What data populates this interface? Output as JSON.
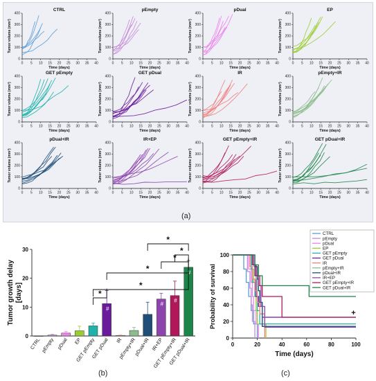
{
  "captions": {
    "a": "(a)",
    "b": "(b)",
    "c": "(c)"
  },
  "chart_data": [
    {
      "type": "line",
      "panel": "(a)",
      "xlabel": "Time (days)",
      "ylabel": "Tumor volume (mm³)",
      "xlim": [
        0,
        40
      ],
      "ylim": [
        0,
        400
      ],
      "xticks": [
        "0",
        "5",
        "10",
        "15",
        "20",
        "25",
        "30",
        "35",
        "40"
      ],
      "yticks": [
        "0",
        "100",
        "200",
        "300",
        "400"
      ],
      "groups": [
        {
          "title": "CTRL",
          "color": "#5b9bd5",
          "n_lines": 6,
          "end_days": [
            7,
            9,
            10,
            11,
            12,
            19
          ]
        },
        {
          "title": "pEmpty",
          "color": "#c58bd9",
          "n_lines": 7,
          "end_days": [
            9,
            10,
            11,
            12,
            13,
            14,
            15
          ]
        },
        {
          "title": "pDual",
          "color": "#ee82ee",
          "n_lines": 7,
          "end_days": [
            9,
            10,
            11,
            12,
            13,
            14,
            16
          ]
        },
        {
          "title": "EP",
          "color": "#9acd32",
          "n_lines": 7,
          "end_days": [
            10,
            12,
            13,
            14,
            15,
            16,
            23
          ]
        },
        {
          "title": "GET pEmpty",
          "color": "#20b2aa",
          "n_lines": 9,
          "end_days": [
            10,
            12,
            13,
            14,
            15,
            16,
            17,
            18,
            25
          ]
        },
        {
          "title": "GET pDual",
          "color": "#6a1b9a",
          "n_lines": 9,
          "end_days": [
            12,
            14,
            16,
            17,
            18,
            19,
            20,
            22,
            40
          ]
        },
        {
          "title": "IR",
          "color": "#f08080",
          "n_lines": 8,
          "end_days": [
            10,
            12,
            14,
            15,
            16,
            17,
            19,
            24
          ]
        },
        {
          "title": "pEmpty+IR",
          "color": "#8fbc8f",
          "n_lines": 8,
          "end_days": [
            12,
            14,
            15,
            16,
            17,
            18,
            19,
            21
          ]
        },
        {
          "title": "pDual+IR",
          "color": "#1f4e79",
          "n_lines": 8,
          "end_days": [
            16,
            17,
            18,
            19,
            20,
            21,
            21,
            22
          ]
        },
        {
          "title": "IR+EP",
          "color": "#8e44ad",
          "n_lines": 10,
          "end_days": [
            15,
            16,
            18,
            19,
            20,
            22,
            25,
            30,
            35,
            40
          ]
        },
        {
          "title": "GET pEmpty+IR",
          "color": "#b0185a",
          "n_lines": 9,
          "end_days": [
            12,
            14,
            16,
            17,
            18,
            20,
            22,
            26,
            40
          ]
        },
        {
          "title": "GET pDual+IR",
          "color": "#1e8449",
          "n_lines": 9,
          "end_days": [
            14,
            15,
            16,
            17,
            18,
            20,
            40,
            40,
            40
          ]
        }
      ]
    },
    {
      "type": "bar",
      "panel": "(b)",
      "ylabel": "Tumor growth delay\n[days]",
      "ylim": [
        0,
        30
      ],
      "yticks": [
        "0",
        "10",
        "20",
        "30"
      ],
      "categories": [
        "CTRL",
        "pEmpty",
        "pDual",
        "EP",
        "GET pEmpty",
        "GET pDual",
        "IR",
        "pEmpty+IR",
        "pDual+IR",
        "IR+EP",
        "GET pEmpty+IR",
        "GET pDual+IR"
      ],
      "values": [
        0,
        0.3,
        1.0,
        1.8,
        3.5,
        11.2,
        0.2,
        1.9,
        7.5,
        12.8,
        14.0,
        23.8
      ],
      "errors": [
        0,
        0.3,
        0.6,
        1.6,
        1.0,
        4.5,
        0.1,
        1.1,
        4.2,
        2.0,
        5.0,
        2.3
      ],
      "colors": [
        "#5b9bd5",
        "#c58bd9",
        "#ee82ee",
        "#9acd32",
        "#20b2aa",
        "#6a1b9a",
        "#f08080",
        "#8fbc8f",
        "#1f4e79",
        "#8e44ad",
        "#b0185a",
        "#1e8449"
      ],
      "hash_marks": [
        "GET pDual",
        "IR+EP",
        "GET pEmpty+IR",
        "GET pDual+IR"
      ],
      "hash_symbol": "#",
      "star_symbol": "*",
      "brackets": [
        {
          "from": "GET pEmpty",
          "to": "GET pDual",
          "level": 1
        },
        {
          "from": "GET pEmpty",
          "to": "GET pDual+IR",
          "level": 2
        },
        {
          "from": "GET pDual",
          "to": "GET pDual+IR",
          "level": 3
        },
        {
          "from": "IR+EP",
          "to": "GET pDual+IR",
          "level": 4
        },
        {
          "from": "GET pEmpty+IR",
          "to": "GET pDual+IR",
          "level": 5
        },
        {
          "from": "pDual+IR",
          "to": "GET pDual+IR",
          "level": 6
        }
      ]
    },
    {
      "type": "line",
      "subtype": "survival",
      "panel": "(c)",
      "xlabel": "Time (days)",
      "ylabel": "Probability of survival",
      "xlim": [
        0,
        100
      ],
      "ylim": [
        0,
        100
      ],
      "xticks": [
        "0",
        "20",
        "40",
        "60",
        "80",
        "100"
      ],
      "yticks": [
        "0",
        "20",
        "40",
        "60",
        "80",
        "100"
      ],
      "legend_position": "top-right",
      "series": [
        {
          "name": "CTRL",
          "color": "#5b9bd5",
          "x": [
            0,
            9,
            11,
            13,
            15,
            17,
            20
          ],
          "y": [
            100,
            83,
            67,
            50,
            33,
            17,
            0
          ]
        },
        {
          "name": "pEmpty",
          "color": "#c58bd9",
          "x": [
            0,
            12,
            14,
            15,
            16,
            18
          ],
          "y": [
            100,
            80,
            60,
            40,
            20,
            0
          ]
        },
        {
          "name": "pDual",
          "color": "#ee82ee",
          "x": [
            0,
            13,
            15,
            16,
            17,
            19,
            21
          ],
          "y": [
            100,
            83,
            67,
            50,
            33,
            17,
            0
          ]
        },
        {
          "name": "EP",
          "color": "#9acd32",
          "x": [
            0,
            15,
            17,
            18,
            19,
            20,
            27
          ],
          "y": [
            100,
            83,
            67,
            50,
            33,
            17,
            0
          ]
        },
        {
          "name": "GET pEmpty",
          "color": "#20b2aa",
          "x": [
            0,
            15,
            16,
            18,
            20,
            22,
            100
          ],
          "y": [
            100,
            83,
            67,
            50,
            33,
            17,
            17
          ]
        },
        {
          "name": "GET pDual",
          "color": "#6a1b9a",
          "x": [
            0,
            16,
            18,
            19,
            21,
            24,
            100
          ],
          "y": [
            100,
            88,
            75,
            50,
            38,
            25,
            25
          ]
        },
        {
          "name": "IR",
          "color": "#f08080",
          "x": [
            0,
            14,
            16,
            18,
            20,
            22,
            26
          ],
          "y": [
            100,
            86,
            71,
            57,
            43,
            29,
            0
          ]
        },
        {
          "name": "pEmpty+IR",
          "color": "#8fbc8f",
          "x": [
            0,
            17,
            19,
            20,
            22,
            24,
            100
          ],
          "y": [
            100,
            86,
            71,
            57,
            43,
            14,
            14
          ]
        },
        {
          "name": "pDual+IR",
          "color": "#1f4e79",
          "x": [
            0,
            18,
            20,
            21,
            22,
            24,
            100
          ],
          "y": [
            100,
            86,
            71,
            57,
            43,
            14,
            14
          ]
        },
        {
          "name": "IR+EP",
          "color": "#8e44ad",
          "x": [
            0,
            17,
            19,
            21,
            23,
            26,
            100
          ],
          "y": [
            100,
            88,
            75,
            63,
            38,
            13,
            13
          ]
        },
        {
          "name": "GET pEmpty+IR",
          "color": "#b0185a",
          "x": [
            0,
            16,
            19,
            22,
            24,
            40,
            100
          ],
          "y": [
            100,
            88,
            75,
            63,
            50,
            25,
            25
          ]
        },
        {
          "name": "GET pDual+IR",
          "color": "#1e8449",
          "x": [
            0,
            18,
            21,
            24,
            30,
            62,
            100
          ],
          "y": [
            100,
            88,
            75,
            63,
            63,
            50,
            50
          ]
        }
      ],
      "annotations": [
        {
          "text": "*",
          "near_series": "GET pDual+IR"
        },
        {
          "text": "+",
          "near_series": "GET pEmpty+IR"
        }
      ]
    }
  ]
}
